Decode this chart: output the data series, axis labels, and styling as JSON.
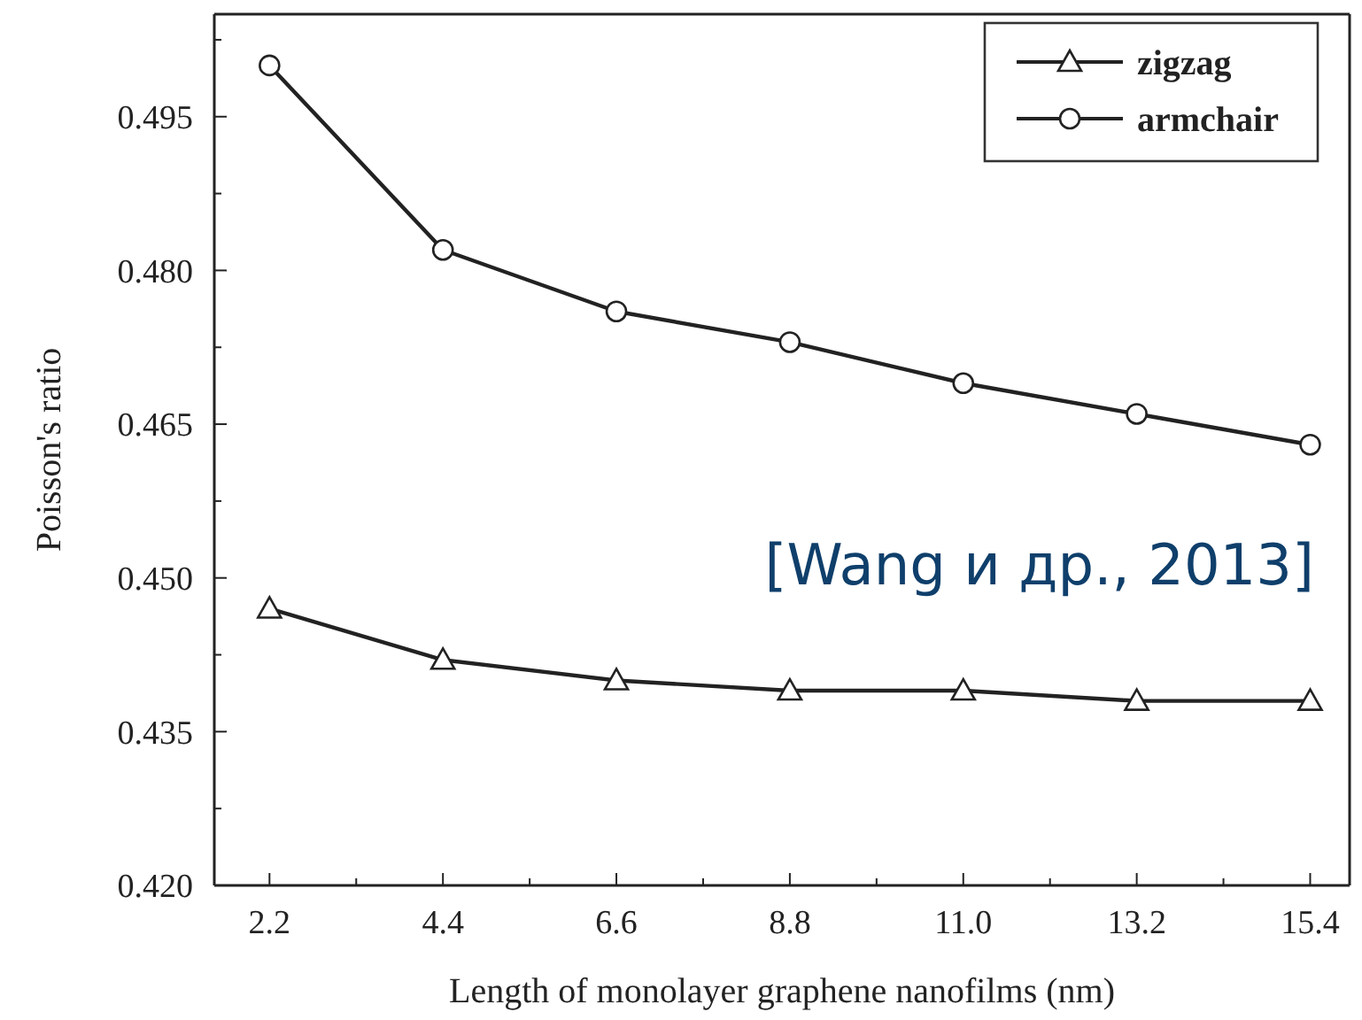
{
  "chart_data": {
    "type": "line",
    "xlabel": "Length of monolayer graphene nanofilms (nm)",
    "ylabel": "Poisson's ratio",
    "annotations": [
      "[Wang и др., 2013]"
    ],
    "x": [
      2.2,
      4.4,
      6.6,
      8.8,
      11.0,
      13.2,
      15.4
    ],
    "series": [
      {
        "name": "zigzag",
        "color": "#222222",
        "marker": "triangle",
        "values": [
          0.447,
          0.442,
          0.44,
          0.439,
          0.439,
          0.438,
          0.438
        ]
      },
      {
        "name": "armchair",
        "color": "#222222",
        "marker": "circle",
        "values": [
          0.5,
          0.482,
          0.476,
          0.473,
          0.469,
          0.466,
          0.463
        ]
      }
    ],
    "xlim": [
      1.5,
      15.9
    ],
    "xticks": [
      {
        "value": 2.2,
        "label": "2.2"
      },
      {
        "value": 3.3,
        "label": null
      },
      {
        "value": 4.4,
        "label": "4.4"
      },
      {
        "value": 5.5,
        "label": null
      },
      {
        "value": 6.6,
        "label": "6.6"
      },
      {
        "value": 7.7,
        "label": null
      },
      {
        "value": 8.8,
        "label": "8.8"
      },
      {
        "value": 9.9,
        "label": null
      },
      {
        "value": 11.0,
        "label": "11.0"
      },
      {
        "value": 12.1,
        "label": null
      },
      {
        "value": 13.2,
        "label": "13.2"
      },
      {
        "value": 14.3,
        "label": null
      },
      {
        "value": 15.4,
        "label": "15.4"
      }
    ],
    "ylim": [
      0.42,
      0.505
    ],
    "yticks": [
      {
        "value": 0.42,
        "label": "0.420"
      },
      {
        "value": 0.4275,
        "label": null
      },
      {
        "value": 0.435,
        "label": "0.435"
      },
      {
        "value": 0.4425,
        "label": null
      },
      {
        "value": 0.45,
        "label": "0.450"
      },
      {
        "value": 0.4575,
        "label": null
      },
      {
        "value": 0.465,
        "label": "0.465"
      },
      {
        "value": 0.4725,
        "label": null
      },
      {
        "value": 0.48,
        "label": "0.480"
      },
      {
        "value": 0.4875,
        "label": null
      },
      {
        "value": 0.495,
        "label": "0.495"
      },
      {
        "value": 0.5025,
        "label": null
      }
    ],
    "grid": false,
    "legend": "top right",
    "line_style": "solid"
  }
}
